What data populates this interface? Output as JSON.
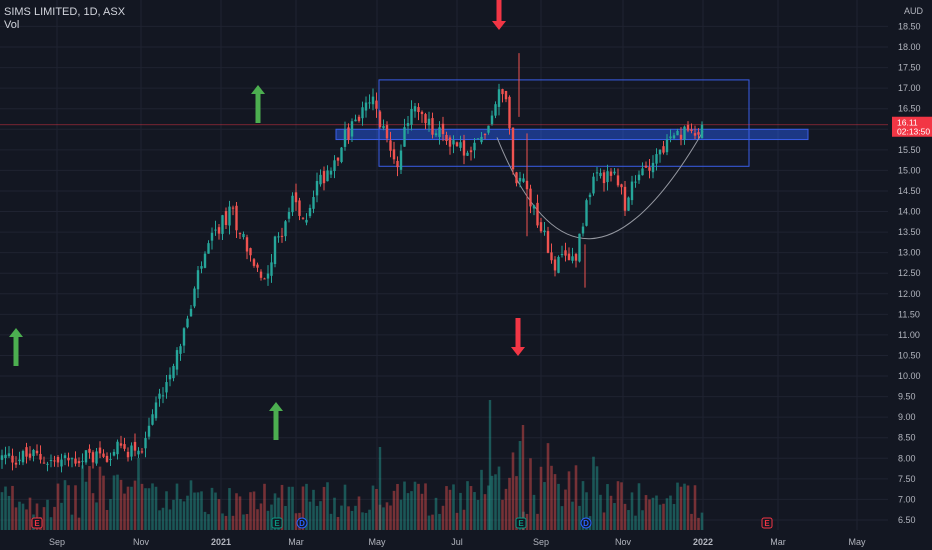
{
  "header": {
    "symbol_line": "SIMS LIMITED, 1D, ASX",
    "volume_label": "Vol"
  },
  "price_axis": {
    "currency": "AUD",
    "ticks": [
      "18.50",
      "18.00",
      "17.50",
      "17.00",
      "16.50",
      "16.00",
      "15.50",
      "15.00",
      "14.50",
      "14.00",
      "13.50",
      "13.00",
      "12.50",
      "12.00",
      "11.50",
      "11.00",
      "10.50",
      "10.00",
      "9.50",
      "9.00",
      "8.50",
      "8.00",
      "7.50",
      "7.00",
      "6.50"
    ]
  },
  "time_axis": {
    "labels": [
      "Sep",
      "Nov",
      "2021",
      "Mar",
      "May",
      "Jul",
      "Sep",
      "Nov",
      "2022",
      "Mar",
      "May"
    ],
    "bold": [
      "2021",
      "2022"
    ]
  },
  "last_price": {
    "price": "16.11",
    "countdown": "02:13:50"
  },
  "events": [
    {
      "letter": "E",
      "color": "#f23645"
    },
    {
      "letter": "E",
      "color": "#089981"
    },
    {
      "letter": "D",
      "color": "#2962ff"
    },
    {
      "letter": "E",
      "color": "#089981"
    },
    {
      "letter": "D",
      "color": "#2962ff"
    },
    {
      "letter": "E",
      "color": "#f23645"
    }
  ],
  "colors": {
    "up": "#26a69a",
    "down": "#ef5350",
    "background": "#131722",
    "grid": "#1f2331",
    "zone_fill": "#2962ff",
    "box_stroke": "#3a5ee8",
    "arrow_up": "#4caf50",
    "arrow_down": "#f23645",
    "price_line": "#f23645"
  },
  "chart_data": {
    "type": "candlestick",
    "title": "SIMS LIMITED, 1D, ASX",
    "currency": "AUD",
    "ylim": [
      6.3,
      19.0
    ],
    "x_ticks": [
      "Sep",
      "Nov",
      "2021",
      "Mar",
      "May",
      "Jul",
      "Sep",
      "Nov",
      "2022",
      "Mar",
      "May"
    ],
    "last_price": 16.11,
    "price_path": [
      {
        "d": "Jul 2020",
        "p": 8.0
      },
      {
        "d": "Aug 2020",
        "p": 8.05
      },
      {
        "d": "Sep 2020",
        "p": 7.9
      },
      {
        "d": "Oct 2020",
        "p": 8.1
      },
      {
        "d": "Nov 2020",
        "p": 8.3
      },
      {
        "d": "early Dec 2020",
        "p": 9.5
      },
      {
        "d": "mid Dec 2020",
        "p": 10.7
      },
      {
        "d": "late Dec 2020",
        "p": 11.5
      },
      {
        "d": "Jan 2021",
        "p": 12.6
      },
      {
        "d": "late Jan 2021",
        "p": 13.6
      },
      {
        "d": "early Feb 2021",
        "p": 14.0
      },
      {
        "d": "mid Feb 2021",
        "p": 13.3
      },
      {
        "d": "late Feb 2021",
        "p": 12.2
      },
      {
        "d": "early Mar 2021",
        "p": 13.0
      },
      {
        "d": "mid Mar 2021",
        "p": 13.8
      },
      {
        "d": "late Mar 2021",
        "p": 14.3
      },
      {
        "d": "early Apr 2021",
        "p": 13.6
      },
      {
        "d": "mid Apr 2021",
        "p": 14.6
      },
      {
        "d": "late Apr 2021",
        "p": 15.1
      },
      {
        "d": "early May 2021",
        "p": 16.0
      },
      {
        "d": "mid May 2021",
        "p": 16.7
      },
      {
        "d": "late May 2021",
        "p": 15.8
      },
      {
        "d": "early Jun 2021",
        "p": 15.2
      },
      {
        "d": "mid Jun 2021",
        "p": 16.6
      },
      {
        "d": "late Jun 2021",
        "p": 15.9
      },
      {
        "d": "Jul 2021",
        "p": 15.7
      },
      {
        "d": "late Jul 2021",
        "p": 15.3
      },
      {
        "d": "early Aug 2021",
        "p": 16.2
      },
      {
        "d": "mid Aug 2021",
        "p": 17.2
      },
      {
        "d": "late Aug 2021",
        "p": 14.5
      },
      {
        "d": "early Sep 2021",
        "p": 14.9
      },
      {
        "d": "mid Sep 2021",
        "p": 14.0
      },
      {
        "d": "early Oct 2021",
        "p": 12.7
      },
      {
        "d": "mid Oct 2021",
        "p": 12.9
      },
      {
        "d": "early Nov 2021",
        "p": 14.6
      },
      {
        "d": "mid Nov 2021",
        "p": 15.0
      },
      {
        "d": "late Nov 2021",
        "p": 14.2
      },
      {
        "d": "early Dec 2021",
        "p": 15.1
      },
      {
        "d": "mid Dec 2021",
        "p": 15.6
      },
      {
        "d": "late Dec 2021",
        "p": 16.1
      }
    ],
    "volume": {
      "range": [
        0,
        1
      ],
      "pattern": "higher spikes around Aug 2021 and Nov 2020"
    },
    "annotations": {
      "resistance_zone": {
        "from": 15.75,
        "to": 16.0
      },
      "consolidation_box": {
        "from_date": "May 2021",
        "to_date": "Feb 2022",
        "from": 15.1,
        "to": 17.2
      },
      "cup_curve": {
        "from_date": "Aug 2021",
        "low_date": "Oct 2021",
        "to_date": "Dec 2021",
        "low": 12.7
      },
      "arrows": [
        {
          "dir": "up",
          "where": "Sep 2020"
        },
        {
          "dir": "up",
          "where": "Feb 2021 (volume)"
        },
        {
          "dir": "up",
          "where": "Apr 2021"
        },
        {
          "dir": "down",
          "where": "Aug 2021 (top)"
        },
        {
          "dir": "down",
          "where": "Aug 2021 (middle)"
        }
      ]
    }
  }
}
